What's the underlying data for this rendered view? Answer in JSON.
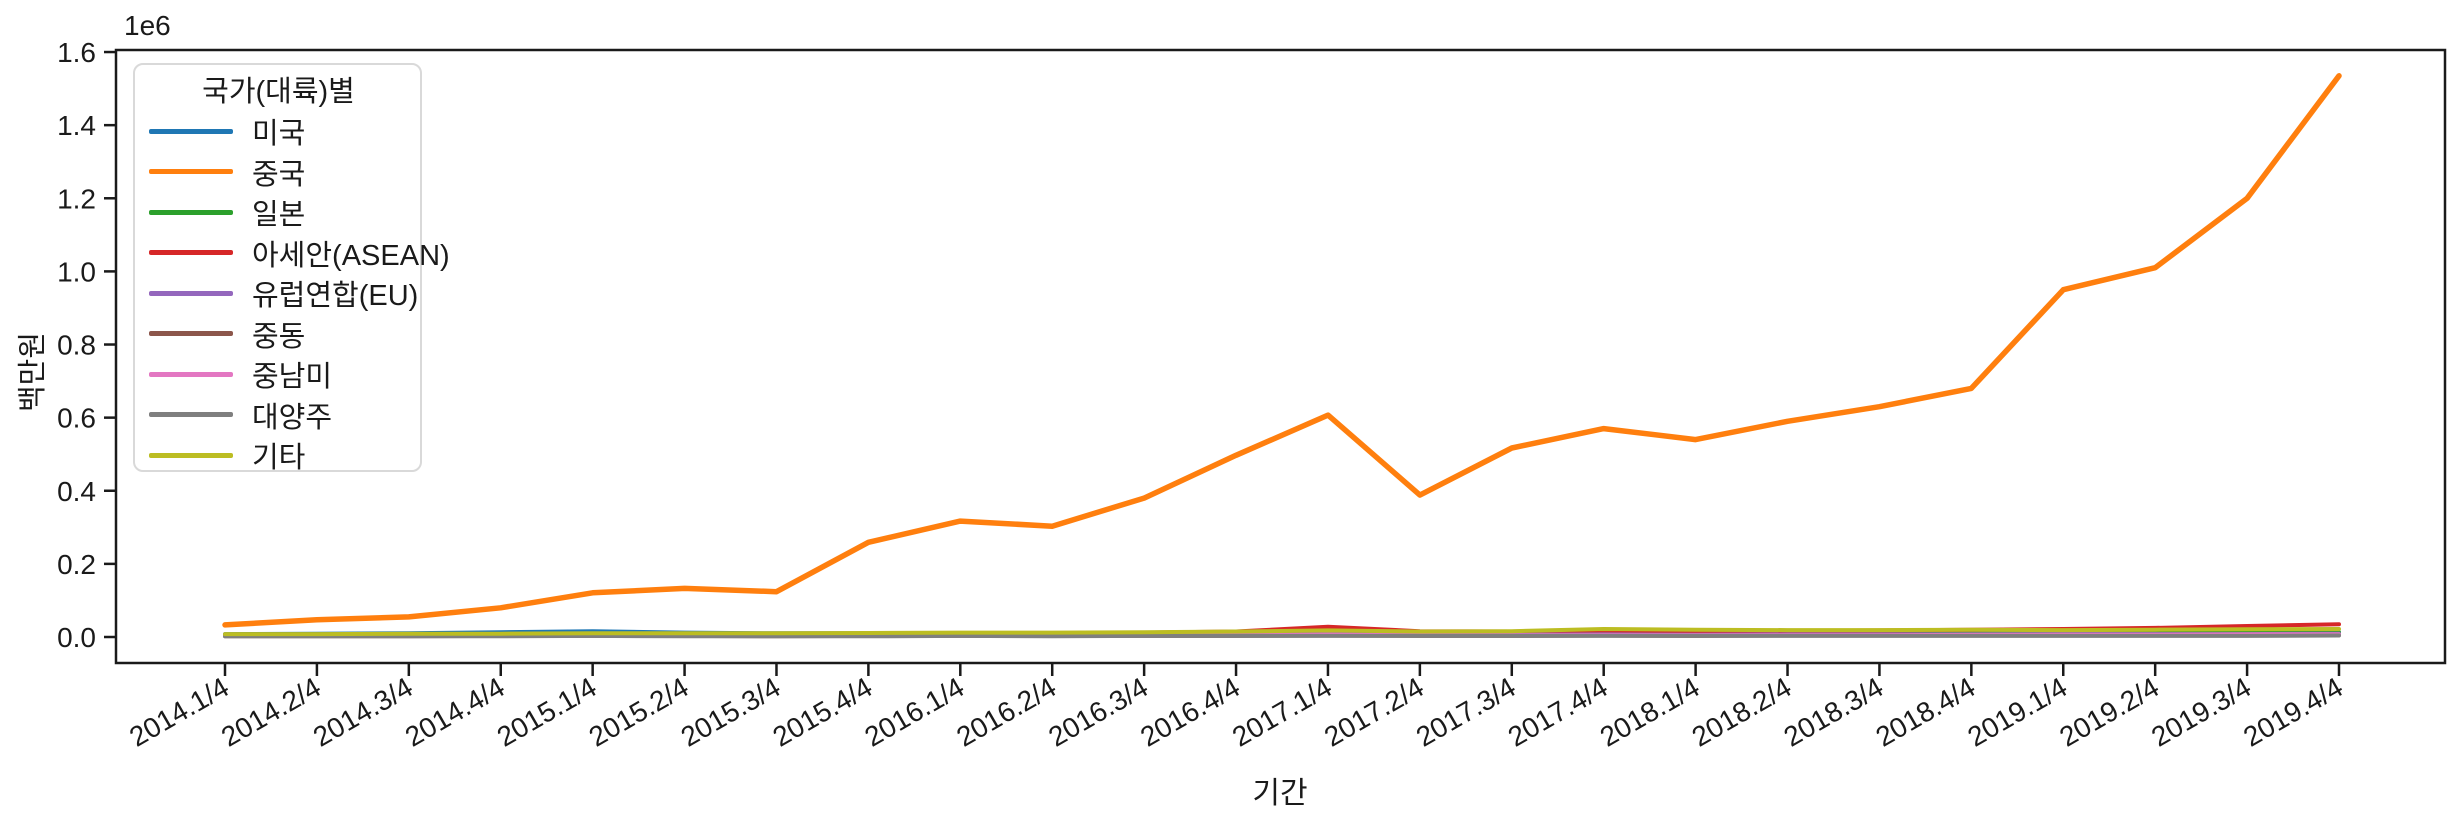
{
  "figure": {
    "background_color": "#ffffff",
    "spine_color": "#1a1a1a"
  },
  "chart_data": {
    "type": "line",
    "title": "",
    "xlabel": "기간",
    "ylabel": "백만원",
    "y_axis_offset_label": "1e6",
    "y_unit_multiplier": 1000000,
    "ylim": [
      -0.08,
      1.66
    ],
    "yticks": [
      0.0,
      0.2,
      0.4,
      0.6,
      0.8,
      1.0,
      1.2,
      1.4,
      1.6
    ],
    "grid": false,
    "legend": {
      "title": "국가(대륙)별",
      "position": "upper left"
    },
    "categories": [
      "2014.1/4",
      "2014.2/4",
      "2014.3/4",
      "2014.4/4",
      "2015.1/4",
      "2015.2/4",
      "2015.3/4",
      "2015.4/4",
      "2016.1/4",
      "2016.2/4",
      "2016.3/4",
      "2016.4/4",
      "2017.1/4",
      "2017.2/4",
      "2017.3/4",
      "2017.4/4",
      "2018.1/4",
      "2018.2/4",
      "2018.3/4",
      "2018.4/4",
      "2019.1/4",
      "2019.2/4",
      "2019.3/4",
      "2019.4/4"
    ],
    "series": [
      {
        "name": "미국",
        "color": "#1f77b4",
        "values": [
          0.008,
          0.009,
          0.01,
          0.013,
          0.016,
          0.012,
          0.01,
          0.01,
          0.01,
          0.009,
          0.01,
          0.011,
          0.012,
          0.01,
          0.01,
          0.011,
          0.011,
          0.011,
          0.011,
          0.012,
          0.012,
          0.012,
          0.013,
          0.013
        ]
      },
      {
        "name": "중국",
        "color": "#ff7f0e",
        "values": [
          0.033,
          0.047,
          0.055,
          0.08,
          0.121,
          0.133,
          0.124,
          0.259,
          0.317,
          0.303,
          0.38,
          0.497,
          0.607,
          0.388,
          0.517,
          0.57,
          0.54,
          0.59,
          0.63,
          0.68,
          0.95,
          1.01,
          1.2,
          1.535
        ]
      },
      {
        "name": "일본",
        "color": "#2ca02c",
        "values": [
          0.004,
          0.004,
          0.005,
          0.005,
          0.006,
          0.005,
          0.005,
          0.006,
          0.006,
          0.006,
          0.006,
          0.007,
          0.008,
          0.007,
          0.007,
          0.008,
          0.008,
          0.008,
          0.008,
          0.009,
          0.009,
          0.01,
          0.011,
          0.012
        ]
      },
      {
        "name": "아세안(ASEAN)",
        "color": "#d62728",
        "values": [
          0.005,
          0.005,
          0.006,
          0.007,
          0.008,
          0.007,
          0.007,
          0.009,
          0.01,
          0.01,
          0.012,
          0.015,
          0.028,
          0.016,
          0.015,
          0.017,
          0.016,
          0.017,
          0.018,
          0.02,
          0.022,
          0.025,
          0.03,
          0.035
        ]
      },
      {
        "name": "유럽연합(EU)",
        "color": "#9467bd",
        "values": [
          0.004,
          0.004,
          0.004,
          0.005,
          0.005,
          0.005,
          0.004,
          0.005,
          0.005,
          0.005,
          0.006,
          0.006,
          0.007,
          0.006,
          0.006,
          0.007,
          0.006,
          0.007,
          0.007,
          0.007,
          0.008,
          0.008,
          0.008,
          0.009
        ]
      },
      {
        "name": "중동",
        "color": "#8c564b",
        "values": [
          0.002,
          0.002,
          0.002,
          0.003,
          0.003,
          0.003,
          0.002,
          0.003,
          0.003,
          0.003,
          0.003,
          0.003,
          0.004,
          0.003,
          0.003,
          0.004,
          0.003,
          0.004,
          0.004,
          0.004,
          0.004,
          0.004,
          0.005,
          0.005
        ]
      },
      {
        "name": "중남미",
        "color": "#e377c2",
        "values": [
          0.003,
          0.003,
          0.003,
          0.004,
          0.004,
          0.004,
          0.003,
          0.004,
          0.004,
          0.004,
          0.004,
          0.005,
          0.006,
          0.005,
          0.005,
          0.005,
          0.005,
          0.005,
          0.005,
          0.006,
          0.006,
          0.006,
          0.007,
          0.007
        ]
      },
      {
        "name": "대양주",
        "color": "#7f7f7f",
        "values": [
          0.002,
          0.002,
          0.002,
          0.002,
          0.003,
          0.002,
          0.002,
          0.002,
          0.003,
          0.002,
          0.003,
          0.003,
          0.003,
          0.003,
          0.003,
          0.003,
          0.003,
          0.003,
          0.003,
          0.003,
          0.003,
          0.003,
          0.003,
          0.004
        ]
      },
      {
        "name": "기타",
        "color": "#bcbd22",
        "values": [
          0.008,
          0.008,
          0.009,
          0.009,
          0.01,
          0.01,
          0.01,
          0.011,
          0.012,
          0.012,
          0.013,
          0.015,
          0.018,
          0.015,
          0.016,
          0.022,
          0.02,
          0.019,
          0.019,
          0.02,
          0.019,
          0.02,
          0.021,
          0.022
        ]
      }
    ]
  }
}
